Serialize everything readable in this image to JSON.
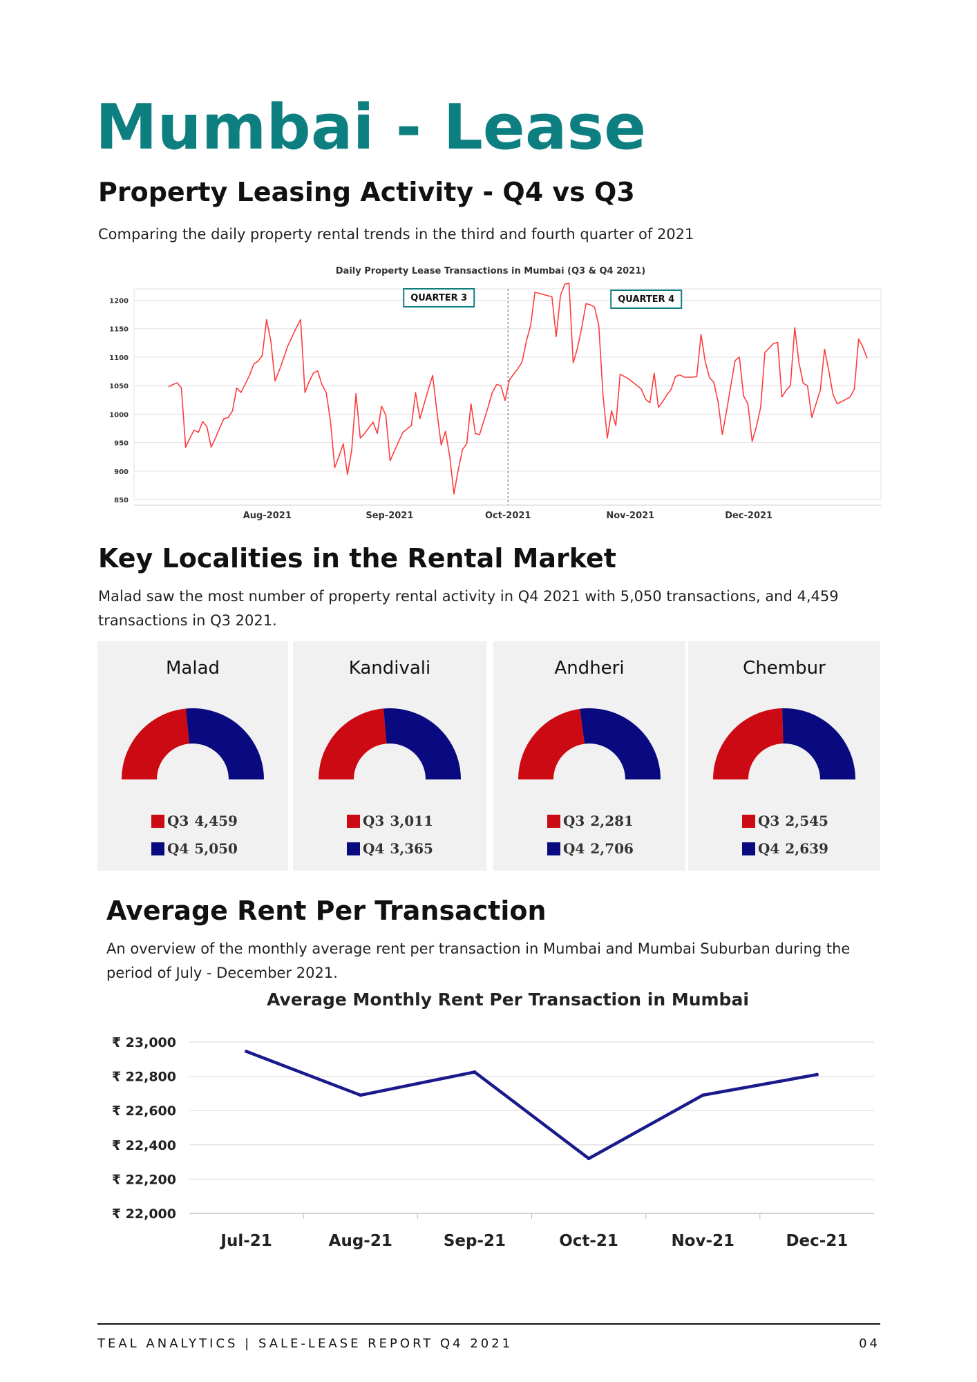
{
  "page": {
    "title": "Mumbai - Lease",
    "section1": {
      "heading": "Property Leasing Activity - Q4 vs Q3",
      "text": "Comparing the daily property rental trends in the third and fourth quarter of 2021"
    },
    "section2": {
      "heading": "Key Localities in the Rental Market",
      "text": "Malad saw the most number of property rental activity in Q4 2021 with 5,050 transactions, and 4,459 transactions in Q3 2021."
    },
    "section3": {
      "heading": "Average Rent Per Transaction",
      "text": "An overview of the monthly average rent per transaction in Mumbai and Mumbai Suburban during the period of July - December 2021."
    }
  },
  "colors": {
    "teal": "#0e7f80",
    "q3": "#cc0a14",
    "q4": "#0a0a80",
    "line": "#ff3b3b",
    "avg_line": "#1a1a8c"
  },
  "chart_data": [
    {
      "type": "line",
      "title": "Daily Property Lease Transactions in Mumbai (Q3 & Q4 2021)",
      "xlabel": "",
      "ylabel": "",
      "ylim": [
        850,
        1220
      ],
      "yticks": [
        850,
        900,
        950,
        1000,
        1050,
        1100,
        1150,
        1200
      ],
      "xticks": [
        "Aug-2021",
        "Sep-2021",
        "Oct-2021",
        "Nov-2021",
        "Dec-2021"
      ],
      "annotations": [
        "QUARTER 3",
        "QUARTER 4"
      ],
      "divider": "Oct-2021",
      "grid": true,
      "x_start": "2021-07-07",
      "x_end": "2021-12-31",
      "y": [
        1048,
        1052,
        1055,
        1046,
        942,
        958,
        972,
        968,
        987,
        978,
        942,
        958,
        976,
        992,
        994,
        1006,
        1046,
        1038,
        1053,
        1068,
        1088,
        1093,
        1103,
        1166,
        1128,
        1058,
        1077,
        1098,
        1120,
        1136,
        1152,
        1166,
        1038,
        1057,
        1072,
        1076,
        1052,
        1038,
        988,
        906,
        926,
        948,
        894,
        938,
        1036,
        958,
        966,
        976,
        986,
        966,
        1014,
        998,
        918,
        935,
        952,
        968,
        974,
        980,
        1038,
        992,
        1018,
        1044,
        1068,
        1004,
        946,
        970,
        926,
        860,
        902,
        938,
        948,
        1018,
        966,
        964,
        988,
        1012,
        1038,
        1052,
        1050,
        1024,
        1060,
        1070,
        1080,
        1092,
        1128,
        1156,
        1214,
        1212,
        1210,
        1208,
        1206,
        1136,
        1208,
        1228,
        1230,
        1090,
        1116,
        1152,
        1194,
        1192,
        1188,
        1156,
        1032,
        958,
        1006,
        980,
        1070,
        1066,
        1062,
        1056,
        1050,
        1044,
        1026,
        1020,
        1072,
        1012,
        1022,
        1034,
        1044,
        1066,
        1069,
        1065,
        1065,
        1065,
        1066,
        1140,
        1092,
        1064,
        1056,
        1022,
        964,
        1006,
        1050,
        1094,
        1100,
        1032,
        1018,
        952,
        978,
        1012,
        1108,
        1116,
        1124,
        1126,
        1030,
        1042,
        1050,
        1152,
        1090,
        1054,
        1050,
        994,
        1018,
        1042,
        1114,
        1076,
        1034,
        1018,
        1022,
        1026,
        1030,
        1044,
        1132,
        1118,
        1098
      ]
    },
    {
      "type": "bar",
      "title": "Key Localities in the Rental Market",
      "categories": [
        "Malad",
        "Kandivali",
        "Andheri",
        "Chembur"
      ],
      "series": [
        {
          "name": "Q3",
          "values": [
            4459,
            3011,
            2281,
            2545
          ],
          "labels": [
            "4,459",
            "3,011",
            "2,281",
            "2,545"
          ]
        },
        {
          "name": "Q4",
          "values": [
            5050,
            3365,
            2706,
            2639
          ],
          "labels": [
            "5,050",
            "3,365",
            "2,706",
            "2,639"
          ]
        }
      ]
    },
    {
      "type": "line",
      "title": "Average Monthly Rent Per Transaction in Mumbai",
      "categories": [
        "Jul-21",
        "Aug-21",
        "Sep-21",
        "Oct-21",
        "Nov-21",
        "Dec-21"
      ],
      "values": [
        22945,
        22690,
        22825,
        22320,
        22690,
        22810
      ],
      "ylim": [
        22000,
        23000
      ],
      "yticks": [
        22000,
        22200,
        22400,
        22600,
        22800,
        23000
      ],
      "ytick_labels": [
        "₹ 22,000",
        "₹ 22,200",
        "₹ 22,400",
        "₹ 22,600",
        "₹ 22,800",
        "₹ 23,000"
      ],
      "grid": true
    }
  ],
  "footer": {
    "left": "TEAL ANALYTICS | SALE-LEASE REPORT Q4 2021",
    "right": "04"
  }
}
